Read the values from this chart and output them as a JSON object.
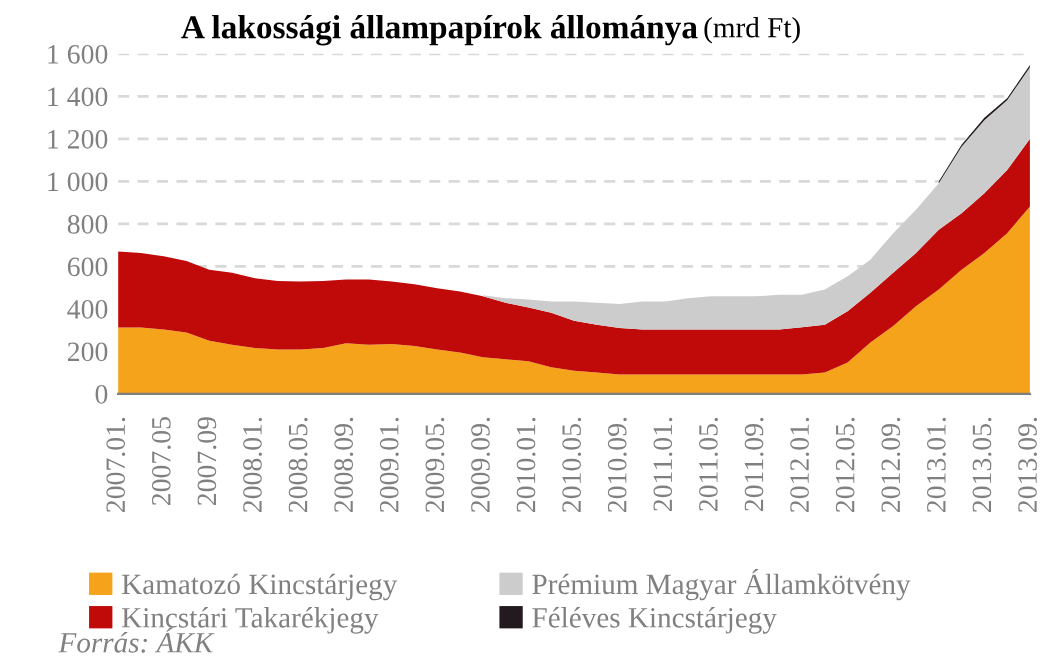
{
  "chart_data": {
    "type": "area",
    "stacked": true,
    "title": "A lakossági állampapírok állománya",
    "subtitle": "(mrd Ft)",
    "categories": [
      "2007.01.",
      null,
      "2007.05",
      null,
      "2007.09",
      null,
      "2008.01.",
      null,
      "2008.05.",
      null,
      "2008.09.",
      null,
      "2009.01.",
      null,
      "2009.05.",
      null,
      "2009.09.",
      null,
      "2010.01.",
      null,
      "2010.05.",
      null,
      "2010.09.",
      null,
      "2011.01.",
      null,
      "2011.05.",
      null,
      "2011.09.",
      null,
      "2012.01.",
      null,
      "2012.05.",
      null,
      "2012.09.",
      null,
      "2013.01.",
      null,
      "2013.05.",
      null,
      "2013.09."
    ],
    "series": [
      {
        "name": "Kamatozó Kincstárjegy",
        "color": "#f5a31a",
        "values": [
          312,
          312,
          303,
          288,
          250,
          231,
          216,
          209,
          209,
          216,
          238,
          231,
          234,
          225,
          209,
          194,
          172,
          162,
          153,
          125,
          109,
          100,
          91,
          91,
          91,
          91,
          91,
          91,
          91,
          91,
          91,
          100,
          147,
          241,
          319,
          412,
          491,
          584,
          662,
          756,
          881
        ]
      },
      {
        "name": "Kincstári Takarékjegy",
        "color": "#c00a0a",
        "values": [
          357,
          350,
          344,
          337,
          334,
          338,
          328,
          322,
          319,
          315,
          300,
          307,
          294,
          291,
          288,
          287,
          287,
          266,
          253,
          256,
          235,
          225,
          218,
          212,
          212,
          212,
          212,
          212,
          212,
          212,
          222,
          225,
          241,
          234,
          250,
          250,
          281,
          266,
          282,
          297,
          319
        ]
      },
      {
        "name": "Prémium Magyar Államkötvény",
        "color": "#cccccc",
        "values": [
          null,
          null,
          null,
          null,
          null,
          null,
          null,
          null,
          null,
          null,
          null,
          null,
          null,
          null,
          null,
          null,
          5,
          22,
          38,
          53,
          90,
          103,
          113,
          131,
          131,
          147,
          156,
          156,
          156,
          163,
          153,
          166,
          165,
          156,
          187,
          204,
          219,
          312,
          343,
          328,
          337
        ]
      },
      {
        "name": "Féléves Kincstárjegy",
        "color": "#231a1f",
        "values": [
          null,
          null,
          null,
          null,
          null,
          null,
          null,
          null,
          null,
          null,
          null,
          null,
          null,
          null,
          null,
          null,
          null,
          null,
          null,
          null,
          null,
          null,
          null,
          null,
          null,
          null,
          null,
          null,
          null,
          null,
          null,
          null,
          null,
          null,
          null,
          null,
          8,
          10,
          12,
          10,
          10
        ]
      }
    ],
    "ylim": [
      0,
      1600
    ],
    "yticks": [
      0,
      200,
      400,
      600,
      800,
      {
        "value": 1000,
        "label": "1 000"
      },
      {
        "value": 1200,
        "label": "1 200"
      },
      {
        "value": 1400,
        "label": "1 400"
      },
      {
        "value": 1600,
        "label": "1 600"
      }
    ],
    "grid": "y",
    "legend": "bottom",
    "annotations": [
      "Forrás: ÁKK"
    ]
  }
}
